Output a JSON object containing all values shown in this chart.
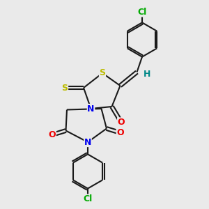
{
  "bg_color": "#eaeaea",
  "bond_color": "#1a1a1a",
  "bond_lw": 1.5,
  "dbo": 0.08,
  "atom_colors": {
    "N": "#0000ee",
    "O": "#ee0000",
    "S": "#bbbb00",
    "Cl": "#00aa00",
    "H": "#008888"
  },
  "fs": 9.0,
  "xlim": [
    0,
    10
  ],
  "ylim": [
    0,
    10
  ]
}
